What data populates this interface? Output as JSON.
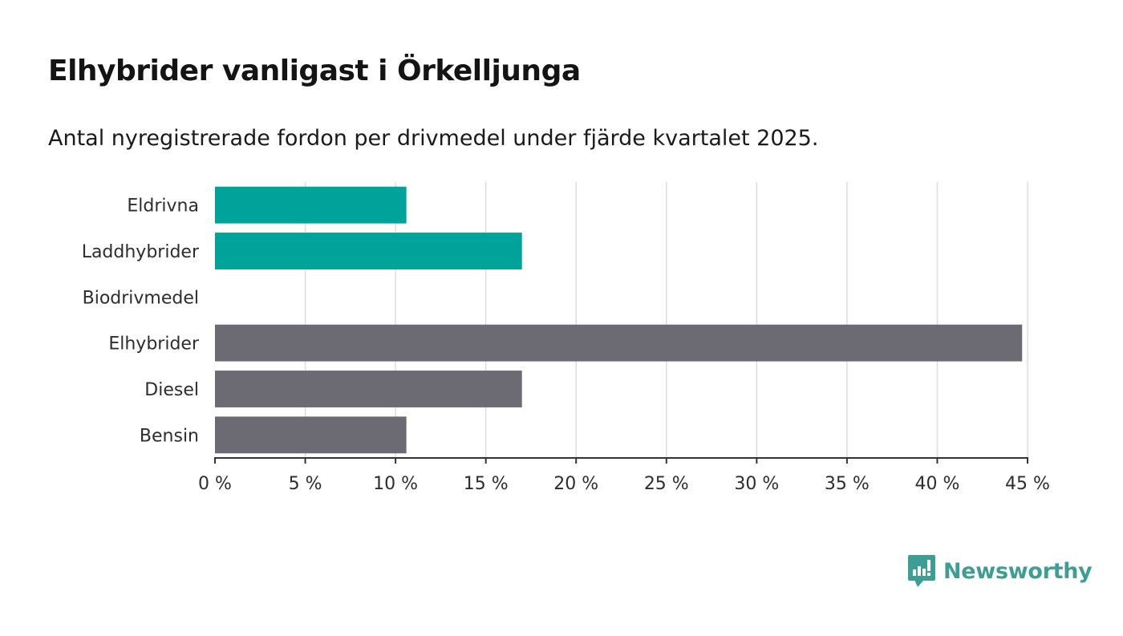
{
  "chart_data": {
    "type": "bar",
    "orientation": "horizontal",
    "title": "Elhybrider vanligast i Örkelljunga",
    "subtitle": "Antal nyregistrerade fordon per drivmedel under fjärde kvartalet 2025.",
    "categories": [
      "Eldrivna",
      "Laddhybrider",
      "Biodrivmedel",
      "Elhybrider",
      "Diesel",
      "Bensin"
    ],
    "values": [
      10.6,
      17.0,
      0,
      44.7,
      17.0,
      10.6
    ],
    "bar_colors": [
      "#00a39a",
      "#00a39a",
      "#00a39a",
      "#6c6b73",
      "#6c6b73",
      "#6c6b73"
    ],
    "xlim": [
      0,
      45
    ],
    "x_ticks": [
      0,
      5,
      10,
      15,
      20,
      25,
      30,
      35,
      40,
      45
    ],
    "x_tick_labels": [
      "0 %",
      "5 %",
      "10 %",
      "15 %",
      "20 %",
      "25 %",
      "30 %",
      "35 %",
      "40 %",
      "45 %"
    ],
    "grid": true,
    "xlabel": "",
    "ylabel": ""
  },
  "branding": {
    "logo_text": "Newsworthy",
    "logo_color": "#3f9e94"
  },
  "colors": {
    "grid": "#dddddd",
    "axis": "#333333"
  }
}
